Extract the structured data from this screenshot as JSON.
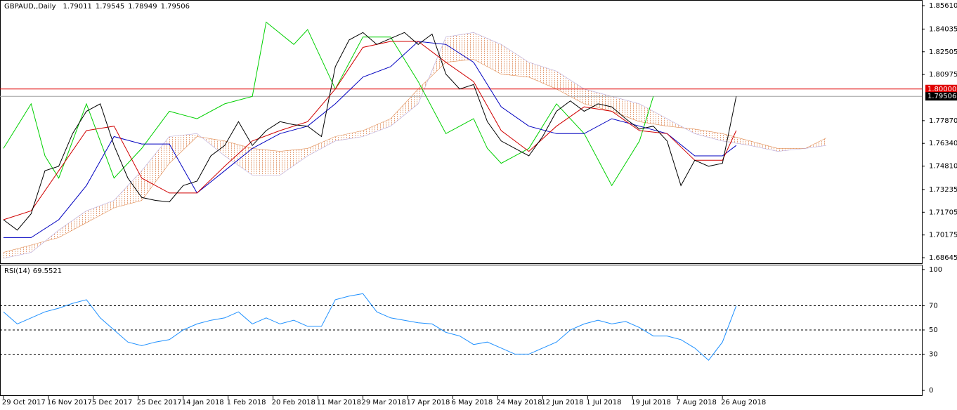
{
  "chart_data": [
    {
      "type": "line",
      "title": "GBPAUD,,Daily",
      "quote": [
        1.79011,
        1.79545,
        1.78949,
        1.79506
      ],
      "xlim": [
        -1,
        265.7
      ],
      "ylim": [
        1.6827,
        1.8599
      ],
      "xticks": [
        {
          "value": 0,
          "label": "29 Oct 2017"
        },
        {
          "value": 13,
          "label": "16 Nov 2017"
        },
        {
          "value": 26,
          "label": "5 Dec 2017"
        },
        {
          "value": 39,
          "label": "25 Dec 2017"
        },
        {
          "value": 52,
          "label": "14 Jan 2018"
        },
        {
          "value": 65,
          "label": "1 Feb 2018"
        },
        {
          "value": 78,
          "label": "20 Feb 2018"
        },
        {
          "value": 91,
          "label": "11 Mar 2018"
        },
        {
          "value": 104,
          "label": "29 Mar 2018"
        },
        {
          "value": 117,
          "label": "17 Apr 2018"
        },
        {
          "value": 130,
          "label": "6 May 2018"
        },
        {
          "value": 143,
          "label": "24 May 2018"
        },
        {
          "value": 156,
          "label": "12 Jun 2018"
        },
        {
          "value": 169,
          "label": "1 Jul 2018"
        },
        {
          "value": 182,
          "label": "19 Jul 2018"
        },
        {
          "value": 195,
          "label": "7 Aug 2018"
        },
        {
          "value": 208,
          "label": "26 Aug 2018"
        }
      ],
      "yticks": [
        {
          "value": 1.8561,
          "label": "1.85610"
        },
        1.84035,
        1.82505,
        1.80975,
        {
          "value": 1.7787,
          "label": "1.77870"
        },
        {
          "value": 1.7634,
          "label": "1.76340"
        },
        {
          "value": 1.7481,
          "label": "1.74810"
        },
        1.73235,
        1.71705,
        1.70175,
        1.68645
      ],
      "hlines": [
        {
          "value": 1.8,
          "label": "1.80000",
          "color": "#e00000"
        },
        {
          "value": 1.79506,
          "label": "1.79506",
          "color": "#a0a0a0"
        }
      ],
      "cloud": [
        {
          "color": "#e08a50",
          "x": [
            0,
            8,
            16,
            24,
            32,
            40,
            48,
            56,
            64,
            72,
            80,
            88,
            96,
            104,
            112,
            120,
            128,
            136,
            144,
            152,
            160,
            168,
            176,
            184,
            192,
            200,
            208,
            216,
            224,
            232,
            238
          ],
          "values": [
            1.69,
            1.695,
            1.7,
            1.71,
            1.72,
            1.725,
            1.75,
            1.768,
            1.765,
            1.76,
            1.758,
            1.76,
            1.768,
            1.772,
            1.78,
            1.8,
            1.818,
            1.82,
            1.81,
            1.808,
            1.8,
            1.79,
            1.785,
            1.778,
            1.775,
            1.773,
            1.77,
            1.765,
            1.76,
            1.76,
            1.767
          ]
        },
        {
          "color": "#b8a8d8",
          "x": [
            0,
            8,
            16,
            24,
            32,
            40,
            48,
            56,
            64,
            72,
            80,
            88,
            96,
            104,
            112,
            120,
            128,
            136,
            144,
            152,
            160,
            168,
            176,
            184,
            192,
            200,
            208,
            216,
            224,
            232,
            238
          ],
          "values": [
            1.686,
            1.69,
            1.705,
            1.718,
            1.725,
            1.745,
            1.768,
            1.77,
            1.755,
            1.742,
            1.742,
            1.755,
            1.765,
            1.768,
            1.775,
            1.79,
            1.835,
            1.838,
            1.83,
            1.818,
            1.812,
            1.8,
            1.795,
            1.79,
            1.78,
            1.77,
            1.765,
            1.762,
            1.758,
            1.76,
            1.762
          ]
        }
      ],
      "lines": [
        {
          "color": "#00d000",
          "x": [
            0,
            8,
            12,
            16,
            24,
            32,
            40,
            48,
            56,
            64,
            72,
            76,
            84,
            88,
            96,
            104,
            112,
            120,
            128,
            136,
            140,
            144,
            152,
            160,
            168,
            176,
            184,
            188
          ],
          "values": [
            1.76,
            1.79,
            1.755,
            1.74,
            1.79,
            1.74,
            1.76,
            1.785,
            1.78,
            1.79,
            1.795,
            1.845,
            1.83,
            1.84,
            1.8,
            1.835,
            1.835,
            1.805,
            1.77,
            1.78,
            1.76,
            1.75,
            1.76,
            1.79,
            1.77,
            1.735,
            1.765,
            1.795
          ]
        },
        {
          "color": "#0000c0",
          "x": [
            0,
            8,
            16,
            24,
            32,
            40,
            48,
            56,
            64,
            72,
            80,
            88,
            96,
            104,
            112,
            120,
            128,
            136,
            144,
            152,
            160,
            168,
            176,
            184,
            192,
            200,
            208,
            212
          ],
          "values": [
            1.7,
            1.7,
            1.712,
            1.735,
            1.768,
            1.763,
            1.763,
            1.73,
            1.745,
            1.76,
            1.77,
            1.775,
            1.79,
            1.808,
            1.815,
            1.832,
            1.83,
            1.818,
            1.788,
            1.775,
            1.77,
            1.77,
            1.78,
            1.775,
            1.77,
            1.755,
            1.755,
            1.762
          ]
        },
        {
          "color": "#d00000",
          "x": [
            0,
            8,
            16,
            24,
            32,
            40,
            48,
            56,
            64,
            72,
            80,
            88,
            96,
            104,
            112,
            120,
            128,
            136,
            144,
            152,
            160,
            168,
            176,
            184,
            192,
            200,
            208,
            212
          ],
          "values": [
            1.712,
            1.718,
            1.745,
            1.772,
            1.775,
            1.74,
            1.73,
            1.73,
            1.748,
            1.765,
            1.772,
            1.778,
            1.8,
            1.828,
            1.832,
            1.832,
            1.818,
            1.805,
            1.772,
            1.758,
            1.775,
            1.788,
            1.785,
            1.772,
            1.77,
            1.752,
            1.752,
            1.772
          ]
        },
        {
          "color": "#000000",
          "x": [
            0,
            4,
            8,
            12,
            16,
            20,
            24,
            28,
            32,
            36,
            40,
            44,
            48,
            52,
            56,
            60,
            64,
            68,
            72,
            76,
            80,
            84,
            88,
            92,
            96,
            100,
            104,
            108,
            112,
            116,
            120,
            124,
            128,
            132,
            136,
            140,
            144,
            148,
            152,
            156,
            160,
            164,
            168,
            172,
            176,
            180,
            184,
            188,
            192,
            196,
            200,
            204,
            208,
            212
          ],
          "values": [
            1.712,
            1.705,
            1.716,
            1.745,
            1.748,
            1.77,
            1.785,
            1.79,
            1.762,
            1.74,
            1.727,
            1.725,
            1.724,
            1.735,
            1.738,
            1.755,
            1.762,
            1.778,
            1.762,
            1.772,
            1.778,
            1.776,
            1.775,
            1.768,
            1.815,
            1.833,
            1.838,
            1.83,
            1.834,
            1.838,
            1.83,
            1.837,
            1.81,
            1.8,
            1.803,
            1.778,
            1.765,
            1.76,
            1.755,
            1.768,
            1.785,
            1.792,
            1.785,
            1.79,
            1.788,
            1.78,
            1.773,
            1.775,
            1.765,
            1.735,
            1.752,
            1.748,
            1.75,
            1.795
          ]
        }
      ]
    },
    {
      "type": "line",
      "title": "RSI(14)",
      "last": 69.5521,
      "xlim": [
        -1,
        265.7
      ],
      "ylim": [
        -4,
        104
      ],
      "yticks": [
        0,
        30,
        50,
        70,
        100
      ],
      "levels": [
        30,
        50,
        70
      ],
      "color": "#1e90ff",
      "x": [
        0,
        4,
        8,
        12,
        16,
        20,
        24,
        28,
        32,
        36,
        40,
        44,
        48,
        52,
        56,
        60,
        64,
        68,
        72,
        76,
        80,
        84,
        88,
        92,
        96,
        100,
        104,
        108,
        112,
        116,
        120,
        124,
        128,
        132,
        136,
        140,
        144,
        148,
        152,
        156,
        160,
        164,
        168,
        172,
        176,
        180,
        184,
        188,
        192,
        196,
        200,
        204,
        208,
        212
      ],
      "values": [
        65,
        55,
        60,
        65,
        68,
        72,
        75,
        60,
        50,
        40,
        37,
        40,
        42,
        50,
        55,
        58,
        60,
        65,
        55,
        60,
        55,
        58,
        53,
        53,
        75,
        78,
        80,
        65,
        60,
        58,
        56,
        55,
        48,
        45,
        38,
        40,
        35,
        30,
        30,
        35,
        40,
        50,
        55,
        58,
        55,
        57,
        52,
        45,
        45,
        42,
        35,
        25,
        40,
        70
      ]
    }
  ]
}
